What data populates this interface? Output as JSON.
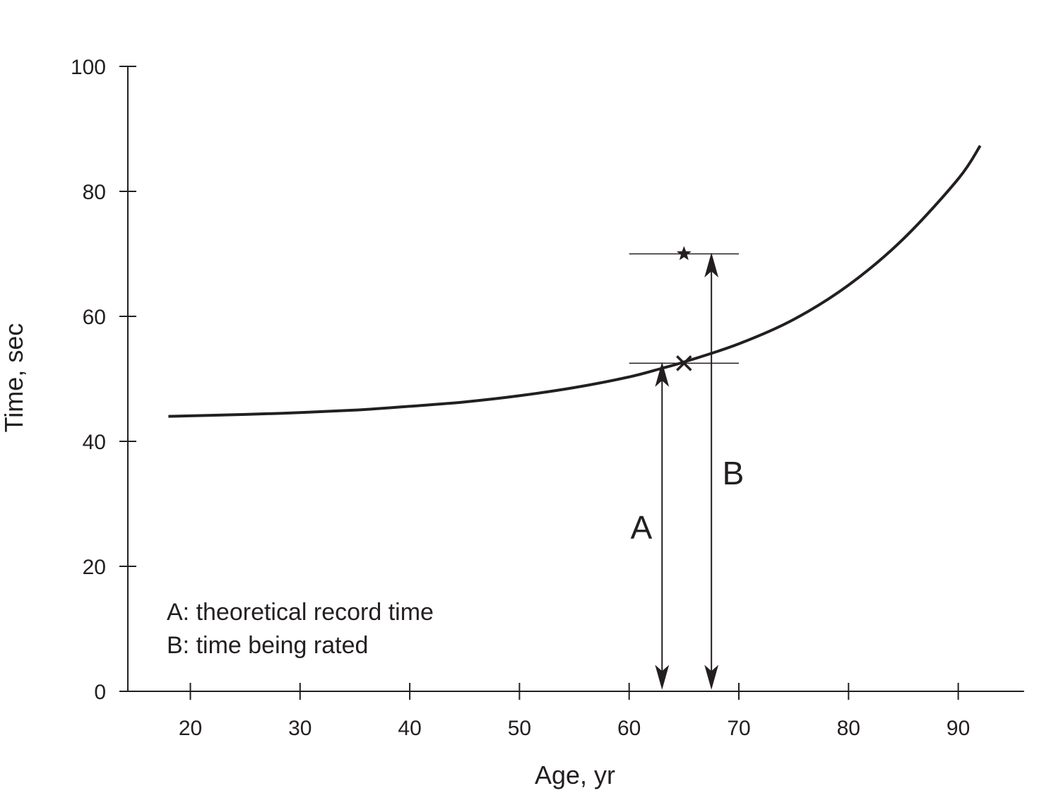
{
  "chart_data": {
    "type": "line",
    "xlabel": "Age, yr",
    "ylabel": "Time, sec",
    "xlim": [
      15,
      96
    ],
    "ylim": [
      0,
      100
    ],
    "x_ticks": [
      20,
      30,
      40,
      50,
      60,
      70,
      80,
      90
    ],
    "y_ticks": [
      0,
      20,
      40,
      60,
      80,
      100
    ],
    "grid": false,
    "series": [
      {
        "x": [
          18,
          25,
          30,
          35,
          40,
          45,
          50,
          55,
          60,
          63,
          65,
          70,
          75,
          80,
          85,
          90,
          92
        ],
        "y": [
          44.0,
          44.3,
          44.6,
          45.0,
          45.6,
          46.3,
          47.3,
          48.6,
          50.3,
          51.7,
          52.7,
          55.6,
          59.5,
          65.0,
          72.4,
          82.0,
          87.3
        ]
      }
    ],
    "markers": [
      {
        "type": "x",
        "x": 65,
        "y": 52.5
      },
      {
        "type": "star",
        "x": 65,
        "y": 70
      }
    ],
    "reference_lines": [
      {
        "y": 52.5,
        "x_from": 60,
        "x_to": 70
      },
      {
        "y": 70,
        "x_from": 60,
        "x_to": 70
      }
    ],
    "annotations": [
      {
        "label": "A",
        "x": 63,
        "y_from": 0,
        "y_to": 52.5
      },
      {
        "label": "B",
        "x": 67.5,
        "y_from": 0,
        "y_to": 70
      }
    ],
    "legend_text": [
      "A: theoretical record time",
      "B: time being rated"
    ],
    "colors": {
      "ink": "#231f20",
      "background": "#ffffff"
    }
  }
}
